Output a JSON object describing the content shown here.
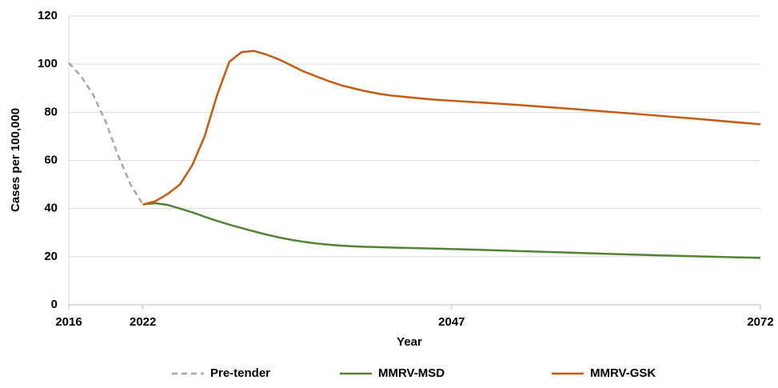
{
  "chart_data": {
    "type": "line",
    "xlabel": "Year",
    "ylabel": "Cases per 100,000",
    "xlim": [
      2016,
      2072
    ],
    "xticks": [
      2016,
      2022,
      2047,
      2072
    ],
    "ylim": [
      0,
      120
    ],
    "yticks": [
      0,
      20,
      40,
      60,
      80,
      100,
      120
    ],
    "grid": true,
    "legend": "bottom",
    "series": [
      {
        "name": "Pre-tender",
        "color": "#a6a6a6",
        "dash": true,
        "x": [
          2016,
          2017,
          2018,
          2019,
          2020,
          2021,
          2022
        ],
        "values": [
          100.5,
          95,
          87,
          76,
          62,
          50,
          41.7
        ]
      },
      {
        "name": "MMRV-MSD",
        "color": "#548235",
        "dash": false,
        "x": [
          2022,
          2023,
          2024,
          2025,
          2026,
          2027,
          2028,
          2029,
          2030,
          2031,
          2032,
          2033,
          2034,
          2035,
          2036,
          2037,
          2038,
          2039,
          2040,
          2042,
          2047,
          2052,
          2057,
          2062,
          2067,
          2072
        ],
        "values": [
          41.7,
          42.2,
          41.5,
          40,
          38.4,
          36.6,
          34.9,
          33.3,
          31.9,
          30.5,
          29.2,
          28,
          27,
          26.2,
          25.5,
          25,
          24.6,
          24.3,
          24.1,
          23.8,
          23.2,
          22.4,
          21.6,
          20.8,
          20.1,
          19.5
        ]
      },
      {
        "name": "MMRV-GSK",
        "color": "#c55a11",
        "dash": false,
        "x": [
          2022,
          2023,
          2024,
          2025,
          2026,
          2027,
          2028,
          2029,
          2030,
          2031,
          2032,
          2033,
          2034,
          2035,
          2036,
          2037,
          2038,
          2039,
          2040,
          2041,
          2042,
          2043,
          2044,
          2045,
          2046,
          2047,
          2052,
          2057,
          2062,
          2067,
          2072
        ],
        "values": [
          41.7,
          43,
          46,
          50,
          58,
          70,
          87,
          101,
          105,
          105.5,
          104,
          102,
          99.5,
          97,
          95,
          93,
          91.3,
          90,
          88.8,
          87.8,
          87,
          86.5,
          86,
          85.5,
          85.1,
          84.8,
          83.2,
          81.3,
          79.3,
          77.2,
          75
        ]
      }
    ]
  }
}
